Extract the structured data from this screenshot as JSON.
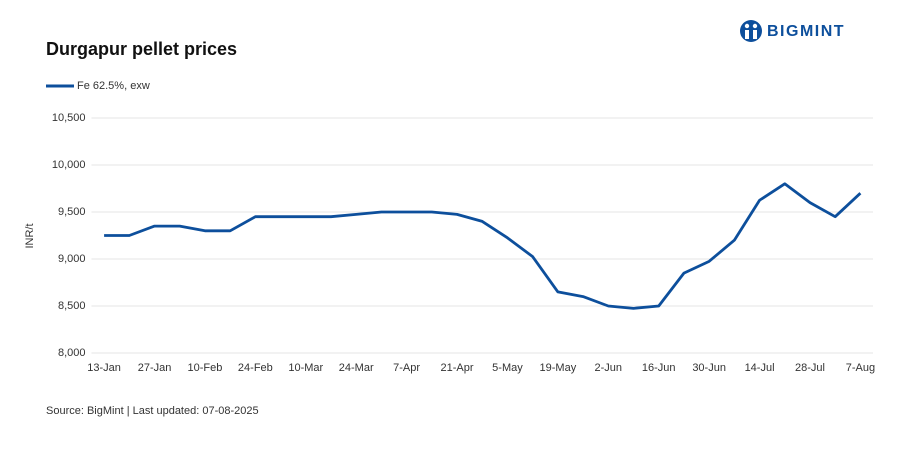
{
  "brand": "BIGMINT",
  "chart_data": {
    "type": "line",
    "title": "Durgapur pellet prices",
    "y_label": "INR/t",
    "source": "Source: BigMint | Last updated: 07-08-2025",
    "categories": [
      "13-Jan",
      null,
      "27-Jan",
      null,
      "10-Feb",
      null,
      "24-Feb",
      null,
      "10-Mar",
      null,
      "24-Mar",
      null,
      "7-Apr",
      null,
      "21-Apr",
      null,
      "5-May",
      null,
      "19-May",
      null,
      "2-Jun",
      null,
      "16-Jun",
      null,
      "30-Jun",
      null,
      "14-Jul",
      null,
      "28-Jul",
      null,
      "7-Aug"
    ],
    "series": [
      {
        "name": "Fe 62.5%, exw",
        "color": "#0d4f9c",
        "values": [
          9250,
          9250,
          9350,
          9350,
          9300,
          9300,
          9450,
          9450,
          9450,
          9450,
          9475,
          9500,
          9500,
          9500,
          9475,
          9400,
          9225,
          9025,
          8650,
          8600,
          8500,
          8475,
          8500,
          8850,
          8975,
          9200,
          9625,
          9800,
          9600,
          9450,
          9700
        ]
      }
    ],
    "ylim": [
      8000,
      10500
    ],
    "yticks": [
      {
        "value": 8000,
        "label": "8,000"
      },
      {
        "value": 8500,
        "label": "8,500"
      },
      {
        "value": 9000,
        "label": "9,000"
      },
      {
        "value": 9500,
        "label": "9,500"
      },
      {
        "value": 10000,
        "label": "10,000"
      },
      {
        "value": 10500,
        "label": "10,500"
      }
    ],
    "grid": true
  }
}
